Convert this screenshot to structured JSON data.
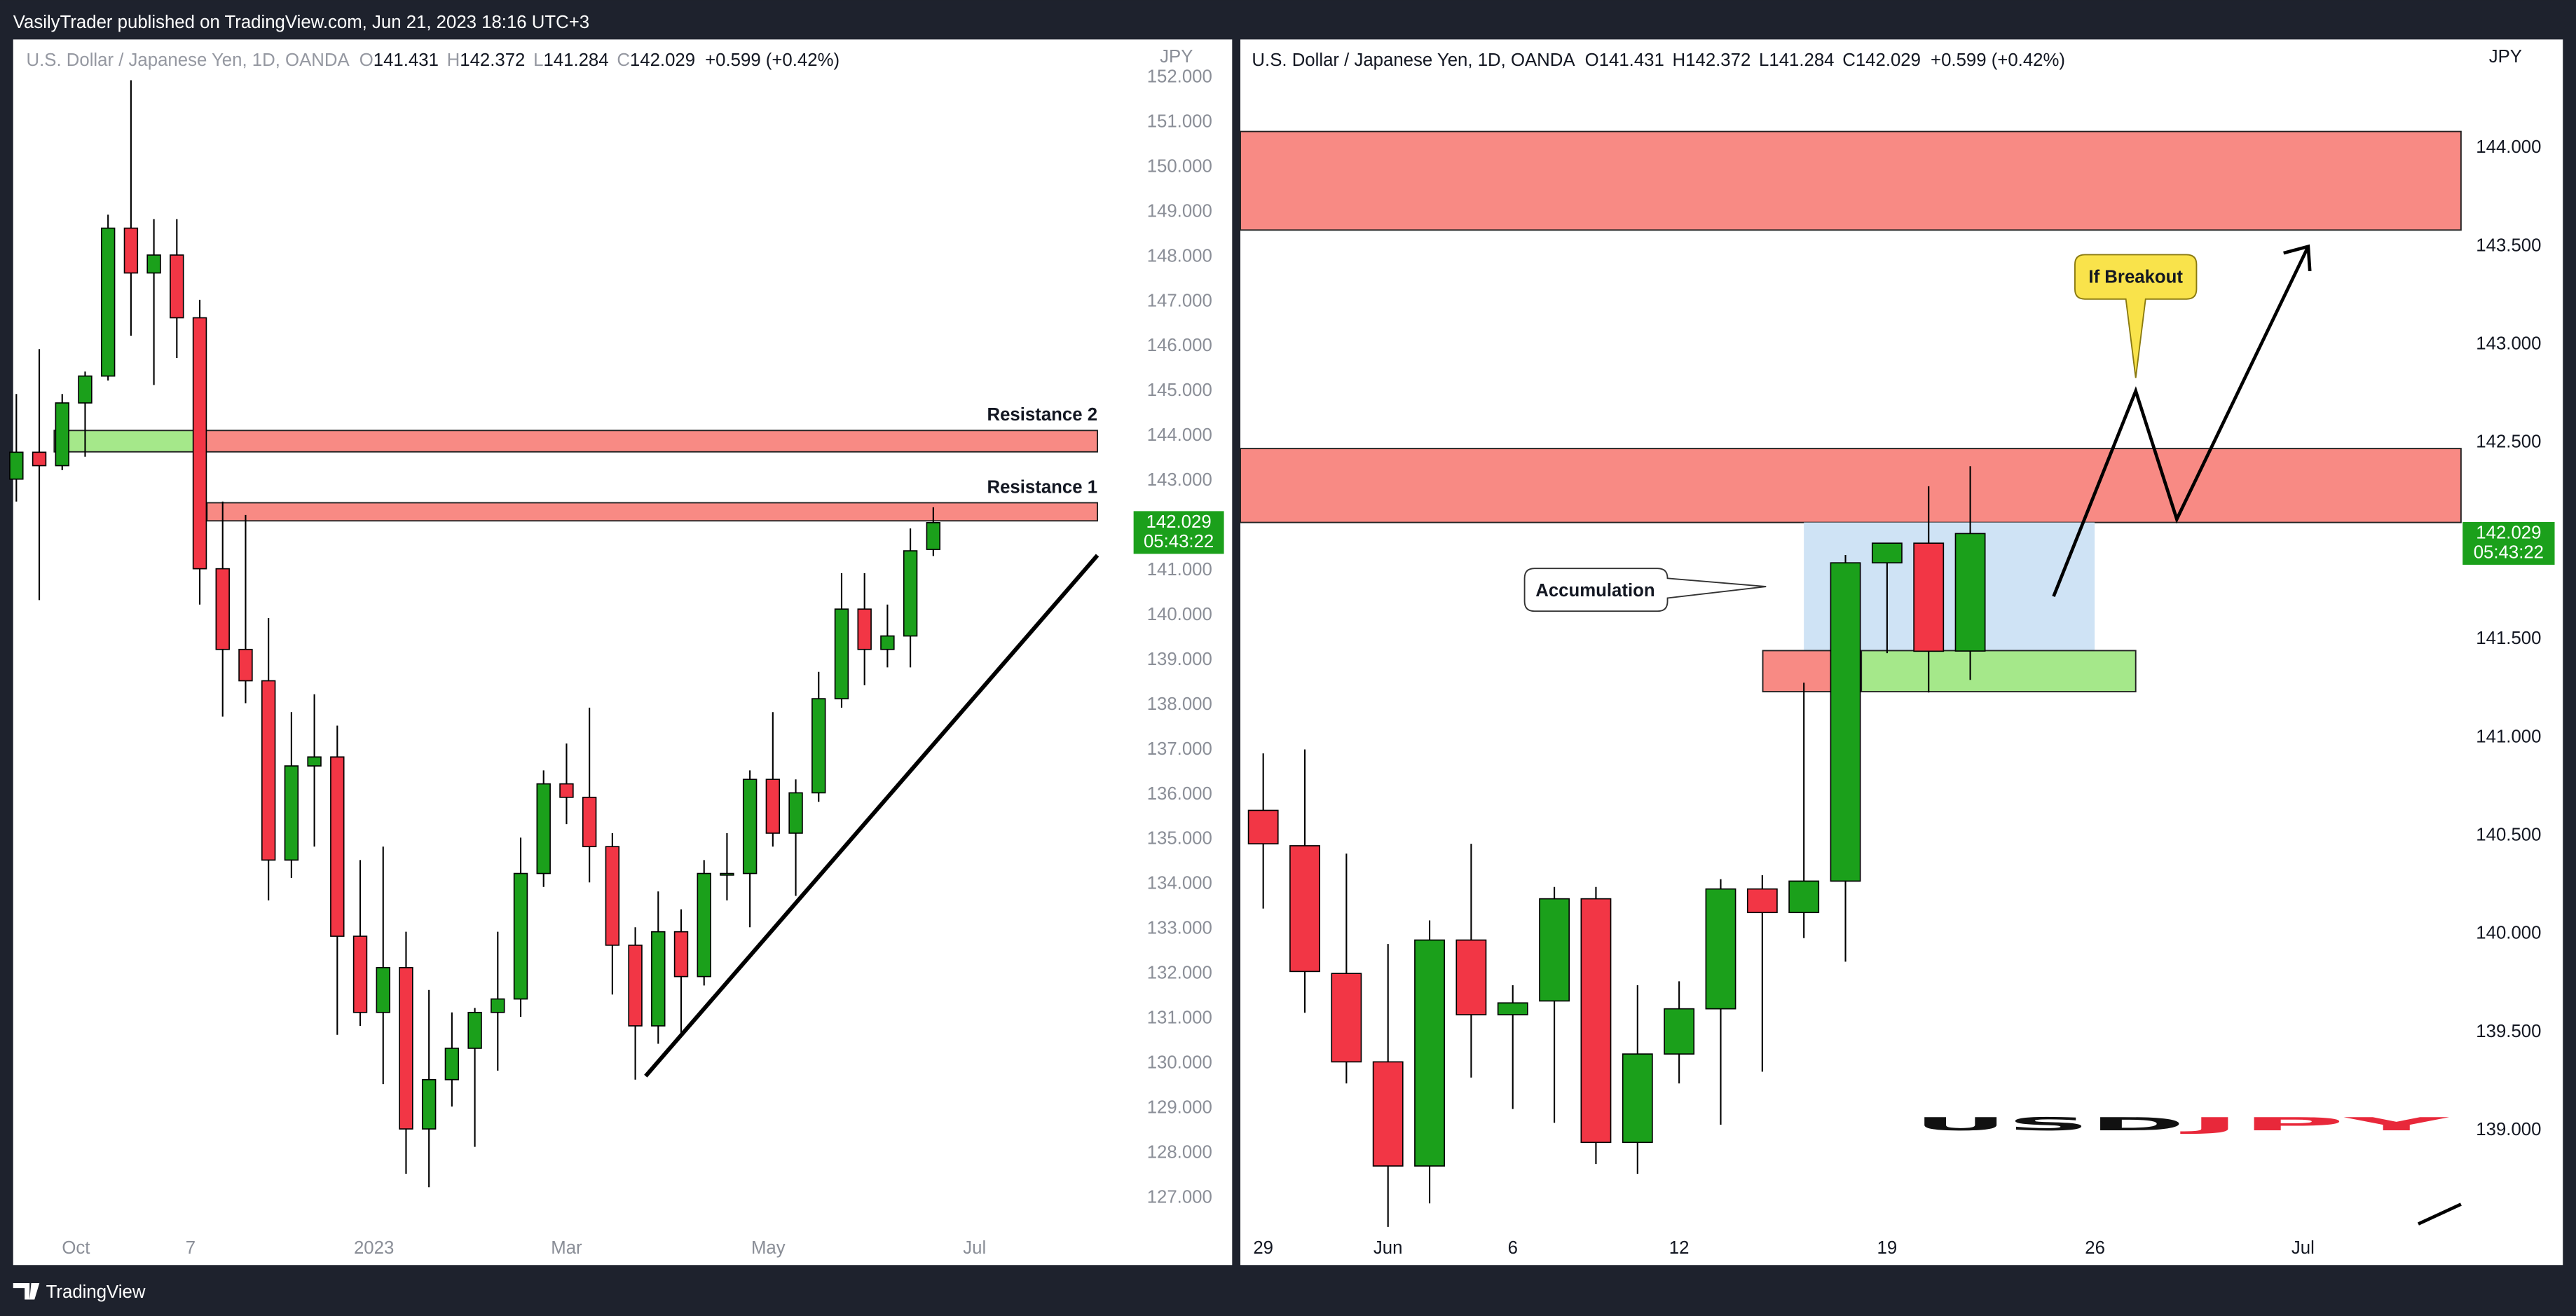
{
  "header": {
    "text": "VasilyTrader published on TradingView.com, Jun 21, 2023 18:16 UTC+3"
  },
  "footer": {
    "brand": "TradingView"
  },
  "chart_data": [
    {
      "type": "candlestick",
      "title": "U.S. Dollar / Japanese Yen, 1D, OANDA",
      "ohlc": [
        [
          "O",
          "141.431"
        ],
        [
          "H",
          "142.372"
        ],
        [
          "L",
          "141.284"
        ],
        [
          "C",
          "142.029"
        ]
      ],
      "change": "+0.599 (+0.42%)",
      "y_axis_label": "JPY",
      "up_color": "#1ba01b",
      "down_color": "#f23645",
      "x": [
        0,
        5,
        10,
        15,
        20,
        25,
        30,
        35,
        40,
        45,
        50,
        55,
        60,
        65,
        70,
        75,
        80,
        85,
        90,
        95,
        100,
        105,
        110,
        115,
        120,
        125,
        130,
        135,
        140,
        145,
        150,
        155,
        160,
        165,
        170,
        175,
        180,
        185,
        190,
        195,
        200
      ],
      "open": [
        143.0,
        143.6,
        143.3,
        144.7,
        145.3,
        148.6,
        147.6,
        148.0,
        146.6,
        141.0,
        139.2,
        138.5,
        134.5,
        136.6,
        136.8,
        132.8,
        131.1,
        132.1,
        128.5,
        129.6,
        130.3,
        131.1,
        131.4,
        134.2,
        136.2,
        135.9,
        134.8,
        132.6,
        130.8,
        132.9,
        131.9,
        134.2,
        134.2,
        136.3,
        135.1,
        136.0,
        138.1,
        140.1,
        139.2,
        139.5,
        141.431
      ],
      "high": [
        144.9,
        145.9,
        144.9,
        145.4,
        148.9,
        151.9,
        148.8,
        148.8,
        147.0,
        142.5,
        142.2,
        139.9,
        137.8,
        138.2,
        137.5,
        134.5,
        134.8,
        132.9,
        131.6,
        131.1,
        131.2,
        132.9,
        135.0,
        136.5,
        137.1,
        137.9,
        135.1,
        133.0,
        133.8,
        133.4,
        134.5,
        135.1,
        136.5,
        137.8,
        136.3,
        138.7,
        140.9,
        140.9,
        140.2,
        141.9,
        142.372
      ],
      "low": [
        142.5,
        140.3,
        143.2,
        143.5,
        145.2,
        146.2,
        145.1,
        145.7,
        140.2,
        137.7,
        138.0,
        133.6,
        134.1,
        134.8,
        130.6,
        130.8,
        129.5,
        127.5,
        127.2,
        129.0,
        128.1,
        129.8,
        131.0,
        133.9,
        135.3,
        134.0,
        131.5,
        129.6,
        130.4,
        130.6,
        131.7,
        133.6,
        133.0,
        134.8,
        133.7,
        135.8,
        137.9,
        138.4,
        138.8,
        138.8,
        141.284
      ],
      "close": [
        143.6,
        143.3,
        144.7,
        145.3,
        148.6,
        147.6,
        148.0,
        146.6,
        141.0,
        139.2,
        138.5,
        134.5,
        136.6,
        136.8,
        132.8,
        131.1,
        132.1,
        128.5,
        129.6,
        130.3,
        131.1,
        131.4,
        134.2,
        136.2,
        135.9,
        134.8,
        132.6,
        130.8,
        132.9,
        131.9,
        134.2,
        134.2,
        136.3,
        135.1,
        136.0,
        138.1,
        140.1,
        139.2,
        139.5,
        141.4,
        142.029
      ],
      "xlim": [
        -0.7,
        235.8
      ],
      "xticks": [
        {
          "value": 13,
          "label": "Oct"
        },
        {
          "value": 38,
          "label": "7"
        },
        {
          "value": 78,
          "label": "2023"
        },
        {
          "value": 120,
          "label": "Mar"
        },
        {
          "value": 164,
          "label": "May"
        },
        {
          "value": 209,
          "label": "Jul"
        }
      ],
      "ylim": [
        126.38,
        152.59
      ],
      "yticks": [
        {
          "value": 127,
          "label": "127.000"
        },
        {
          "value": 128,
          "label": "128.000"
        },
        {
          "value": 129,
          "label": "129.000"
        },
        {
          "value": 130,
          "label": "130.000"
        },
        {
          "value": 131,
          "label": "131.000"
        },
        {
          "value": 132,
          "label": "132.000"
        },
        {
          "value": 133,
          "label": "133.000"
        },
        {
          "value": 134,
          "label": "134.000"
        },
        {
          "value": 135,
          "label": "135.000"
        },
        {
          "value": 136,
          "label": "136.000"
        },
        {
          "value": 137,
          "label": "137.000"
        },
        {
          "value": 138,
          "label": "138.000"
        },
        {
          "value": 139,
          "label": "139.000"
        },
        {
          "value": 140,
          "label": "140.000"
        },
        {
          "value": 141,
          "label": "141.000"
        },
        {
          "value": 142,
          "label": "142.000"
        },
        {
          "value": 143,
          "label": "143.000"
        },
        {
          "value": 144,
          "label": "144.000"
        },
        {
          "value": 145,
          "label": "145.000"
        },
        {
          "value": 146,
          "label": "146.000"
        },
        {
          "value": 147,
          "label": "147.000"
        },
        {
          "value": 148,
          "label": "148.000"
        },
        {
          "value": 149,
          "label": "149.000"
        },
        {
          "value": 150,
          "label": "150.000"
        },
        {
          "value": 151,
          "label": "151.000"
        },
        {
          "value": 152,
          "label": "152.000"
        }
      ],
      "last_price": 142.029,
      "countdown": "05:43:22",
      "annotations": [
        "Resistance 2",
        "Resistance 1"
      ]
    },
    {
      "type": "candlestick",
      "title": "U.S. Dollar / Japanese Yen, 1D, OANDA",
      "ohlc": [
        [
          "O",
          "141.431"
        ],
        [
          "H",
          "142.372"
        ],
        [
          "L",
          "141.284"
        ],
        [
          "C",
          "142.029"
        ]
      ],
      "change": "+0.599 (+0.42%)",
      "y_axis_label": "JPY",
      "up_color": "#1ba01b",
      "down_color": "#f23645",
      "x": [
        0,
        1,
        2,
        3,
        4,
        5,
        6,
        7,
        8,
        9,
        10,
        11,
        12,
        13,
        14,
        15,
        16,
        17
      ],
      "open": [
        140.62,
        140.44,
        139.79,
        139.34,
        138.81,
        139.96,
        139.58,
        139.65,
        140.17,
        138.93,
        139.38,
        139.61,
        140.22,
        140.1,
        140.26,
        141.88,
        141.98,
        141.431
      ],
      "high": [
        140.91,
        140.93,
        140.4,
        139.94,
        140.06,
        140.45,
        139.73,
        140.23,
        140.23,
        139.73,
        139.75,
        140.27,
        140.29,
        141.27,
        141.92,
        141.98,
        142.27,
        142.372
      ],
      "low": [
        140.12,
        139.59,
        139.23,
        138.5,
        138.62,
        139.26,
        139.1,
        139.03,
        138.82,
        138.77,
        139.23,
        139.02,
        139.29,
        139.97,
        139.85,
        141.42,
        141.22,
        141.284
      ],
      "close": [
        140.45,
        139.8,
        139.34,
        138.81,
        139.96,
        139.58,
        139.64,
        140.17,
        138.93,
        139.38,
        139.61,
        140.22,
        140.1,
        140.26,
        141.88,
        141.98,
        141.43,
        142.029
      ],
      "xlim": [
        -0.55,
        28.8
      ],
      "xticks": [
        {
          "value": 0,
          "label": "29"
        },
        {
          "value": 3,
          "label": "Jun"
        },
        {
          "value": 6,
          "label": "6"
        },
        {
          "value": 10,
          "label": "12"
        },
        {
          "value": 15,
          "label": "19"
        },
        {
          "value": 20,
          "label": "26"
        },
        {
          "value": 25,
          "label": "Jul"
        }
      ],
      "ylim": [
        138.515,
        144.527
      ],
      "yticks": [
        {
          "value": 139,
          "label": "139.000"
        },
        {
          "value": 139.5,
          "label": "139.500"
        },
        {
          "value": 140,
          "label": "140.000"
        },
        {
          "value": 140.5,
          "label": "140.500"
        },
        {
          "value": 141,
          "label": "141.000"
        },
        {
          "value": 141.5,
          "label": "141.500"
        },
        {
          "value": 142,
          "label": "142.000"
        },
        {
          "value": 142.5,
          "label": "142.500"
        },
        {
          "value": 143,
          "label": "143.000"
        },
        {
          "value": 143.5,
          "label": "143.500"
        },
        {
          "value": 144,
          "label": "144.000"
        }
      ],
      "last_price": 142.029,
      "countdown": "05:43:22",
      "annotations": [
        "Accumulation",
        "If Breakout"
      ],
      "watermark": [
        "USD",
        "JPY"
      ]
    }
  ]
}
